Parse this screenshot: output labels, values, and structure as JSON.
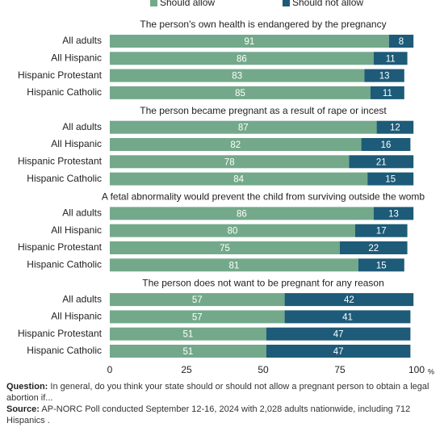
{
  "chart_data": {
    "type": "bar",
    "orientation": "horizontal",
    "stacked": true,
    "series": [
      {
        "name": "Should allow",
        "color": "#73a98a"
      },
      {
        "name": "Should not allow",
        "color": "#1d5b78"
      }
    ],
    "panels": [
      {
        "title": "The person's own health is endangered by the pregnancy",
        "categories": [
          "All adults",
          "All Hispanic",
          "Hispanic Protestant",
          "Hispanic Catholic"
        ],
        "values": [
          [
            91,
            86,
            83,
            85
          ],
          [
            8,
            11,
            13,
            11
          ]
        ]
      },
      {
        "title": "The person became pregnant as a result of rape or incest",
        "categories": [
          "All adults",
          "All Hispanic",
          "Hispanic Protestant",
          "Hispanic Catholic"
        ],
        "values": [
          [
            87,
            82,
            78,
            84
          ],
          [
            12,
            16,
            21,
            15
          ]
        ]
      },
      {
        "title": "A fetal abnormality would prevent the child from surviving outside the womb",
        "categories": [
          "All adults",
          "All Hispanic",
          "Hispanic Protestant",
          "Hispanic Catholic"
        ],
        "values": [
          [
            86,
            80,
            75,
            81
          ],
          [
            13,
            17,
            22,
            15
          ]
        ]
      },
      {
        "title": "The person does not want to be pregnant for any reason",
        "categories": [
          "All adults",
          "All Hispanic",
          "Hispanic Protestant",
          "Hispanic Catholic"
        ],
        "values": [
          [
            57,
            57,
            51,
            51
          ],
          [
            42,
            41,
            47,
            47
          ]
        ]
      }
    ],
    "xlim": [
      0,
      100
    ],
    "xticks": [
      0,
      25,
      50,
      75,
      100
    ],
    "xunit": "%",
    "notes": [
      {
        "label": "Question:",
        "text": "In general, do you think your state should or should not allow a pregnant person to obtain a legal abortion if..."
      },
      {
        "label": "Source:",
        "text": "AP-NORC Poll conducted September 12-16, 2024 with 2,028 adults nationwide, including 712 Hispanics ."
      }
    ]
  }
}
